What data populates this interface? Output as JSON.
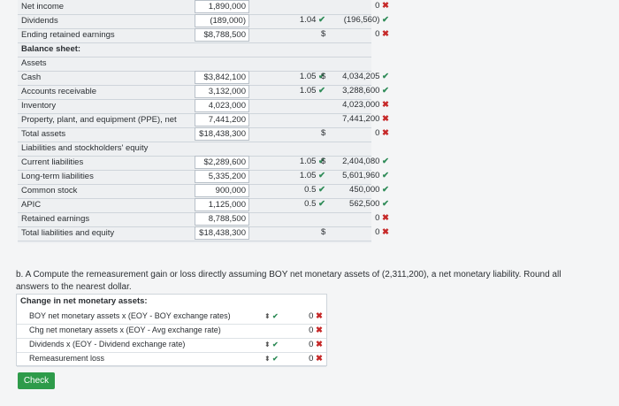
{
  "top_rows": [
    {
      "label": "Net income",
      "value": "1,890,000",
      "rate": "",
      "result": "0",
      "res_mark": "x"
    },
    {
      "label": "Dividends",
      "value": "(189,000)",
      "rate": "1.04",
      "rate_mark": "check",
      "result": "(196,560)",
      "res_mark": "check"
    },
    {
      "label": "Ending retained earnings",
      "value": "$8,788,500",
      "rate": "",
      "result": "0",
      "res_mark": "x",
      "dollar": "$"
    }
  ],
  "balance_title": "Balance sheet:",
  "assets_label": "Assets",
  "asset_rows": [
    {
      "label": "Cash",
      "value": "$3,842,100",
      "rate": "1.05",
      "rate_mark": "check",
      "dollar": "$",
      "result": "4,034,205",
      "res_mark": "check"
    },
    {
      "label": "Accounts receivable",
      "value": "3,132,000",
      "rate": "1.05",
      "rate_mark": "check",
      "result": "3,288,600",
      "res_mark": "check"
    },
    {
      "label": "Inventory",
      "value": "4,023,000",
      "rate": "",
      "result": "4,023,000",
      "res_mark": "x"
    },
    {
      "label": "Property, plant, and equipment (PPE), net",
      "value": "7,441,200",
      "rate": "",
      "result": "7,441,200",
      "res_mark": "x"
    },
    {
      "label": "Total assets",
      "value": "$18,438,300",
      "rate": "",
      "dollar": "$",
      "result": "0",
      "res_mark": "x"
    }
  ],
  "liab_label": "Liabilities and stockholders' equity",
  "liab_rows": [
    {
      "label": "Current liabilities",
      "value": "$2,289,600",
      "rate": "1.05",
      "rate_mark": "check",
      "dollar": "$",
      "result": "2,404,080",
      "res_mark": "check"
    },
    {
      "label": "Long-term liabilities",
      "value": "5,335,200",
      "rate": "1.05",
      "rate_mark": "check",
      "result": "5,601,960",
      "res_mark": "check"
    },
    {
      "label": "Common stock",
      "value": "900,000",
      "rate": "0.5",
      "rate_mark": "check",
      "result": "450,000",
      "res_mark": "check"
    },
    {
      "label": "APIC",
      "value": "1,125,000",
      "rate": "0.5",
      "rate_mark": "check",
      "result": "562,500",
      "res_mark": "check"
    },
    {
      "label": "Retained earnings",
      "value": "8,788,500",
      "rate": "",
      "result": "0",
      "res_mark": "x"
    },
    {
      "label": "Total liabilities and equity",
      "value": "$18,438,300",
      "rate": "",
      "dollar": "$",
      "result": "0",
      "res_mark": "x"
    }
  ],
  "question": "b. A Compute the remeasurement gain or loss directly assuming BOY net monetary assets of (2,311,200), a net monetary liability. Round all answers to the nearest dollar.",
  "change_title": "Change in net monetary assets:",
  "change_rows": [
    {
      "label": "BOY net monetary assets x (EOY - BOY exchange rates)",
      "select": true,
      "sel_mark": "check",
      "result": "0",
      "res_mark": "x"
    },
    {
      "label": "Chg net monetary assets x (EOY - Avg exchange rate)",
      "select": false,
      "result": "0",
      "res_mark": "x"
    },
    {
      "label": "Dividends x (EOY - Dividend exchange rate)",
      "select": true,
      "sel_mark": "check",
      "result": "0",
      "res_mark": "x"
    },
    {
      "label": "Remeasurement loss",
      "select": true,
      "sel_mark": "check",
      "result": "0",
      "res_mark": "x"
    }
  ],
  "check_button": "Check",
  "icons": {
    "check": "✔",
    "x": "✖",
    "updown": "⬍"
  }
}
